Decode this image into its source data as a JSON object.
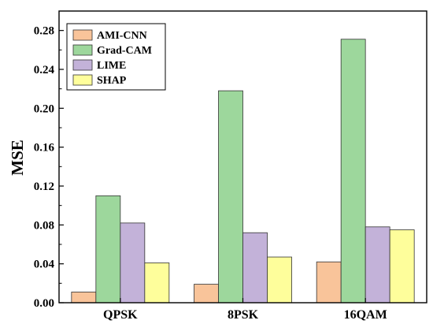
{
  "chart_data": {
    "type": "bar",
    "categories": [
      "QPSK",
      "8PSK",
      "16QAM"
    ],
    "series": [
      {
        "name": "AMI-CNN",
        "color": "#f9c49a",
        "values": [
          0.011,
          0.019,
          0.042
        ]
      },
      {
        "name": "Grad-CAM",
        "color": "#9dd79c",
        "values": [
          0.11,
          0.218,
          0.271
        ]
      },
      {
        "name": "LIME",
        "color": "#c3b2d9",
        "values": [
          0.082,
          0.072,
          0.078
        ]
      },
      {
        "name": "SHAP",
        "color": "#fefe9b",
        "values": [
          0.041,
          0.047,
          0.075
        ]
      }
    ],
    "xlabel": "",
    "ylabel": "MSE",
    "ylim": [
      0,
      0.3
    ],
    "yticks": [
      "0.00",
      "0.04",
      "0.08",
      "0.12",
      "0.16",
      "0.20",
      "0.24",
      "0.28"
    ],
    "ytick_values": [
      0,
      0.04,
      0.08,
      0.12,
      0.16,
      0.2,
      0.24,
      0.28
    ],
    "grid": false,
    "legend_position": "top-left"
  }
}
